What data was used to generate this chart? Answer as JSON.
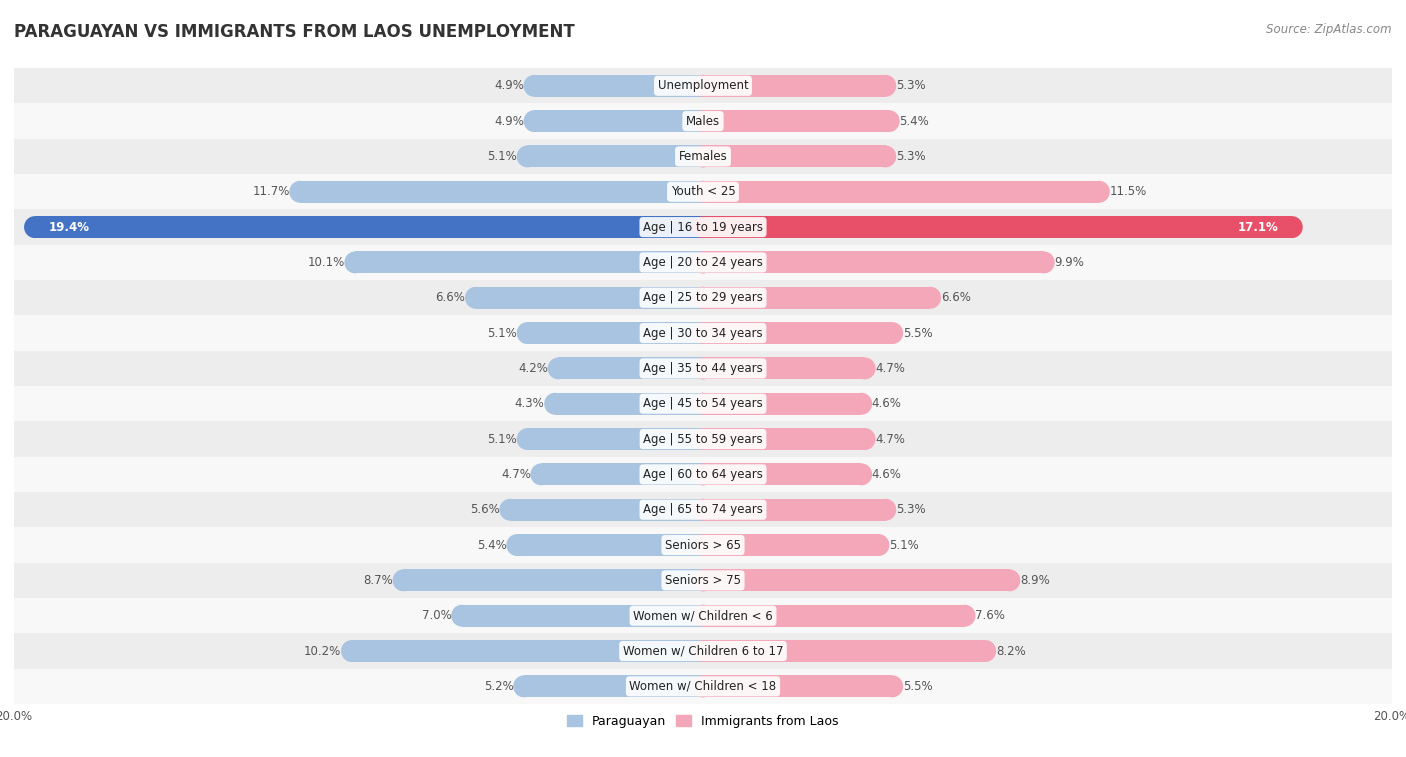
{
  "title": "PARAGUAYAN VS IMMIGRANTS FROM LAOS UNEMPLOYMENT",
  "source": "Source: ZipAtlas.com",
  "categories": [
    "Unemployment",
    "Males",
    "Females",
    "Youth < 25",
    "Age | 16 to 19 years",
    "Age | 20 to 24 years",
    "Age | 25 to 29 years",
    "Age | 30 to 34 years",
    "Age | 35 to 44 years",
    "Age | 45 to 54 years",
    "Age | 55 to 59 years",
    "Age | 60 to 64 years",
    "Age | 65 to 74 years",
    "Seniors > 65",
    "Seniors > 75",
    "Women w/ Children < 6",
    "Women w/ Children 6 to 17",
    "Women w/ Children < 18"
  ],
  "paraguayan": [
    4.9,
    4.9,
    5.1,
    11.7,
    19.4,
    10.1,
    6.6,
    5.1,
    4.2,
    4.3,
    5.1,
    4.7,
    5.6,
    5.4,
    8.7,
    7.0,
    10.2,
    5.2
  ],
  "laos": [
    5.3,
    5.4,
    5.3,
    11.5,
    17.1,
    9.9,
    6.6,
    5.5,
    4.7,
    4.6,
    4.7,
    4.6,
    5.3,
    5.1,
    8.9,
    7.6,
    8.2,
    5.5
  ],
  "paraguayan_color": "#a8c4e0",
  "laos_color": "#f4a7b9",
  "highlight_paraguayan_color": "#4472c4",
  "highlight_laos_color": "#e8506a",
  "highlight_row": 4,
  "bar_height": 0.62,
  "xlim": 20.0,
  "bg_color": "#ffffff",
  "row_colors": [
    "#ededee",
    "#f8f8f8"
  ],
  "label_color_dark": "#555555",
  "legend_paraguayan": "Paraguayan",
  "legend_laos": "Immigrants from Laos",
  "title_fontsize": 12,
  "source_fontsize": 8.5,
  "label_fontsize": 8.5,
  "category_fontsize": 8.5
}
